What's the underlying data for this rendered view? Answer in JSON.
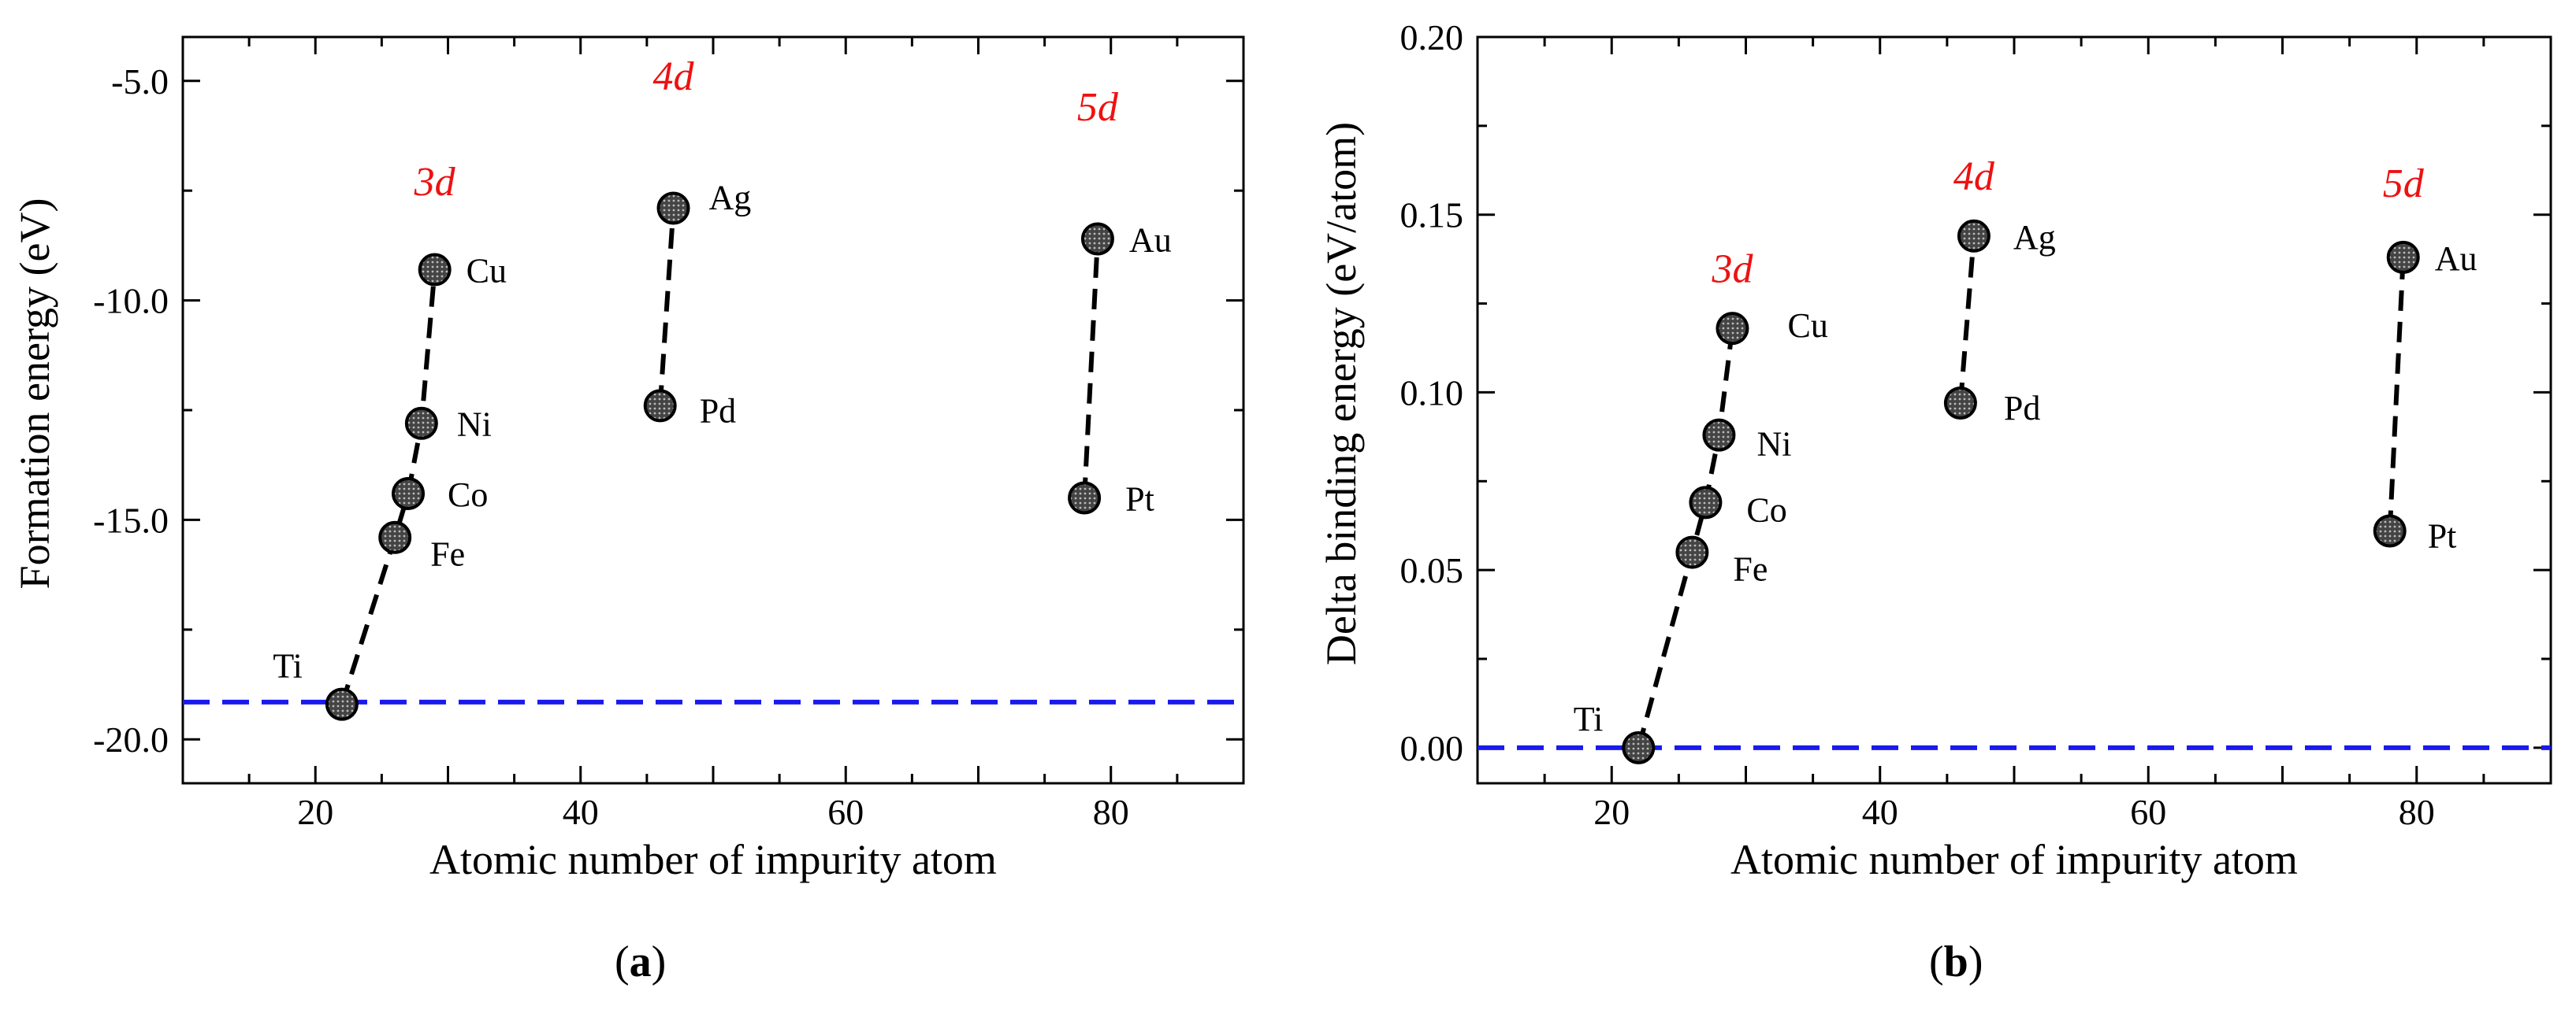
{
  "chart_data": [
    {
      "type": "scatter",
      "panel": "a",
      "caption_letter": "a",
      "xlabel": "Atomic number of impurity atom",
      "ylabel": "Formation energy (eV)",
      "xlim": [
        10,
        90
      ],
      "ylim": [
        -21.0,
        -4.0
      ],
      "xticks": [
        20,
        40,
        60,
        80
      ],
      "xtick_labels": [
        "20",
        "40",
        "60",
        "80"
      ],
      "yticks": [
        -5.0,
        -10.0,
        -15.0,
        -20.0
      ],
      "ytick_labels": [
        "-5.0",
        "-10.0",
        "-15.0",
        "-20.0"
      ],
      "reference_line": {
        "y": -19.15,
        "color": "#1a1aee",
        "style": "dashed"
      },
      "series": [
        {
          "name": "3d",
          "points": [
            {
              "label": "Ti",
              "x": 22,
              "y": -19.2
            },
            {
              "label": "Fe",
              "x": 26,
              "y": -15.4
            },
            {
              "label": "Co",
              "x": 27,
              "y": -14.4
            },
            {
              "label": "Ni",
              "x": 28,
              "y": -12.8
            },
            {
              "label": "Cu",
              "x": 29,
              "y": -9.3
            }
          ]
        },
        {
          "name": "4d",
          "points": [
            {
              "label": "Pd",
              "x": 46,
              "y": -12.4
            },
            {
              "label": "Ag",
              "x": 47,
              "y": -7.9
            }
          ]
        },
        {
          "name": "5d",
          "points": [
            {
              "label": "Pt",
              "x": 78,
              "y": -14.5
            },
            {
              "label": "Au",
              "x": 79,
              "y": -8.6
            }
          ]
        }
      ],
      "group_labels": [
        {
          "text": "3d",
          "x": 29,
          "y": -7.6
        },
        {
          "text": "4d",
          "x": 47,
          "y": -5.2
        },
        {
          "text": "5d",
          "x": 79,
          "y": -5.9
        }
      ]
    },
    {
      "type": "scatter",
      "panel": "b",
      "caption_letter": "b",
      "xlabel": "Atomic number of impurity atom",
      "ylabel": "Delta binding energy (eV/atom)",
      "xlim": [
        10,
        90
      ],
      "ylim": [
        -0.01,
        0.2
      ],
      "xticks": [
        20,
        40,
        60,
        80
      ],
      "xtick_labels": [
        "20",
        "40",
        "60",
        "80"
      ],
      "yticks": [
        0.0,
        0.05,
        0.1,
        0.15,
        0.2
      ],
      "ytick_labels": [
        "0.00",
        "0.05",
        "0.10",
        "0.15",
        "0.20"
      ],
      "reference_line": {
        "y": 0.0,
        "color": "#1a1aee",
        "style": "dashed"
      },
      "series": [
        {
          "name": "3d",
          "points": [
            {
              "label": "Ti",
              "x": 22,
              "y": 0.0
            },
            {
              "label": "Fe",
              "x": 26,
              "y": 0.055
            },
            {
              "label": "Co",
              "x": 27,
              "y": 0.069
            },
            {
              "label": "Ni",
              "x": 28,
              "y": 0.088
            },
            {
              "label": "Cu",
              "x": 29,
              "y": 0.118
            }
          ]
        },
        {
          "name": "4d",
          "points": [
            {
              "label": "Pd",
              "x": 46,
              "y": 0.097
            },
            {
              "label": "Ag",
              "x": 47,
              "y": 0.144
            }
          ]
        },
        {
          "name": "5d",
          "points": [
            {
              "label": "Pt",
              "x": 78,
              "y": 0.061
            },
            {
              "label": "Au",
              "x": 79,
              "y": 0.138
            }
          ]
        }
      ],
      "group_labels": [
        {
          "text": "3d",
          "x": 29,
          "y": 0.131
        },
        {
          "text": "4d",
          "x": 47,
          "y": 0.157
        },
        {
          "text": "5d",
          "x": 79,
          "y": 0.155
        }
      ]
    }
  ]
}
